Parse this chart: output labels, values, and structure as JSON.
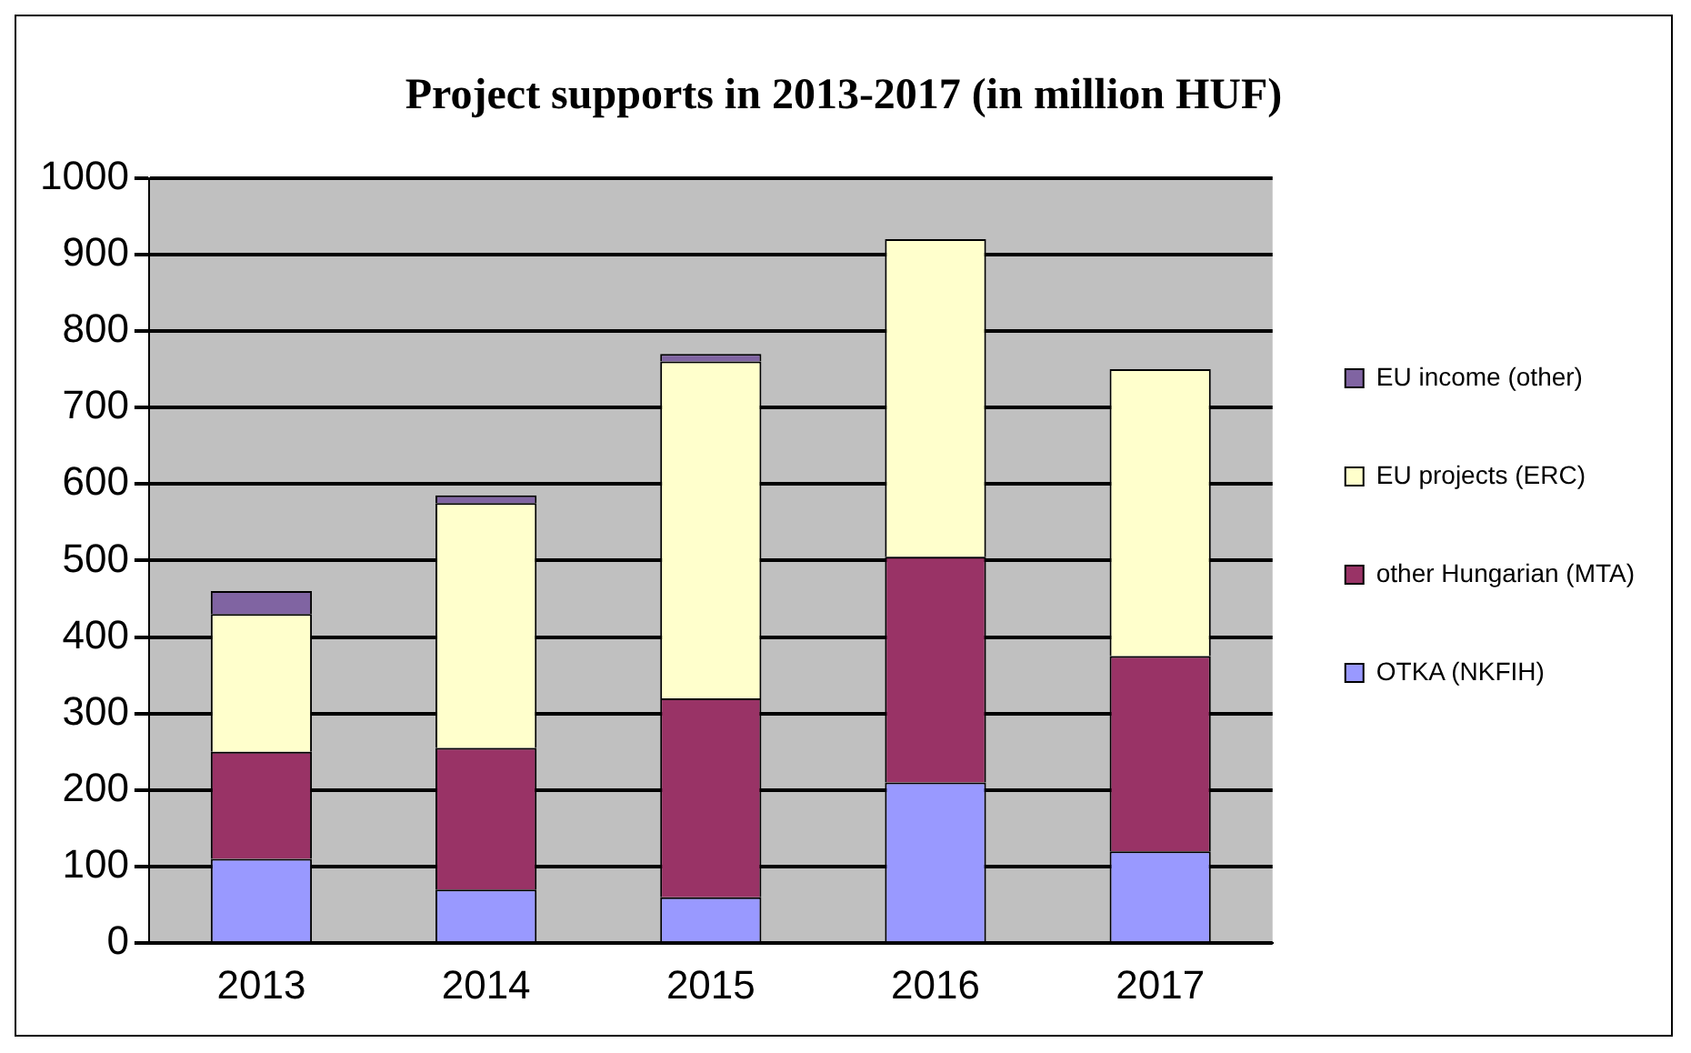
{
  "chart_data": {
    "type": "bar",
    "title": "Project supports in 2013-2017 (in million HUF)",
    "categories": [
      "2013",
      "2014",
      "2015",
      "2016",
      "2017"
    ],
    "stacked": true,
    "series": [
      {
        "name": "OTKA (NKFIH)",
        "color": "#9999ff",
        "values": [
          110,
          70,
          60,
          210,
          120
        ]
      },
      {
        "name": "other Hungarian (MTA)",
        "color": "#993366",
        "values": [
          140,
          185,
          260,
          295,
          255
        ]
      },
      {
        "name": "EU projects (ERC)",
        "color": "#ffffcc",
        "values": [
          180,
          320,
          440,
          415,
          375
        ]
      },
      {
        "name": "EU income (other)",
        "color": "#8064a2",
        "values": [
          30,
          10,
          10,
          0,
          0
        ]
      }
    ],
    "ylim": [
      0,
      1000
    ],
    "yticks": [
      0,
      100,
      200,
      300,
      400,
      500,
      600,
      700,
      800,
      900,
      1000
    ],
    "grid": "y",
    "legend": "right"
  }
}
